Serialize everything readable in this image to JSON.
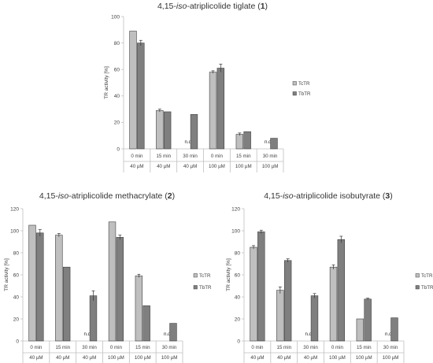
{
  "chart_data": [
    {
      "type": "bar",
      "title": "4,15-iso-atriplicolide tiglate (1)",
      "title_parts": [
        "4,15-",
        "iso",
        "-atriplicolide tiglate (",
        "1",
        ")"
      ],
      "ylabel": "TR activity [%]",
      "ylim": [
        0,
        100
      ],
      "yticks": [
        0,
        20,
        40,
        60,
        80,
        100
      ],
      "categories": [
        {
          "time": "0 min",
          "conc": "40 µM"
        },
        {
          "time": "15 min",
          "conc": "40 µM"
        },
        {
          "time": "30 min",
          "conc": "40 µM"
        },
        {
          "time": "0 min",
          "conc": "100 µM"
        },
        {
          "time": "15 min",
          "conc": "100 µM"
        },
        {
          "time": "30 min",
          "conc": "100 µM"
        }
      ],
      "series": [
        {
          "name": "TcTR",
          "color": "#bfbfbf",
          "values": [
            89,
            29,
            null,
            58,
            11,
            null
          ],
          "errors": [
            0,
            1,
            0,
            1,
            1,
            0
          ],
          "labels": [
            "",
            "",
            "n.d.",
            "",
            "",
            "n.d."
          ]
        },
        {
          "name": "TbTR",
          "color": "#7f7f7f",
          "values": [
            80,
            28,
            26,
            61,
            13,
            8
          ],
          "errors": [
            2,
            0,
            0,
            3,
            0,
            0
          ],
          "labels": [
            "",
            "",
            "",
            "",
            "",
            ""
          ]
        }
      ],
      "legend": "right",
      "grid": false
    },
    {
      "type": "bar",
      "title": "4,15-iso-atriplicolide methacrylate (2)",
      "title_parts": [
        "4,15-",
        "iso",
        "-atriplicolide methacrylate (",
        "2",
        ")"
      ],
      "ylabel": "TR activity [%]",
      "ylim": [
        0,
        120
      ],
      "yticks": [
        0,
        20,
        40,
        60,
        80,
        100,
        120
      ],
      "categories": [
        {
          "time": "0 min",
          "conc": "40 µM"
        },
        {
          "time": "15 min",
          "conc": "40 µM"
        },
        {
          "time": "30 min",
          "conc": "40 µM"
        },
        {
          "time": "0 min",
          "conc": "100 µM"
        },
        {
          "time": "15 min",
          "conc": "100 µM"
        },
        {
          "time": "30 min",
          "conc": "100 µM"
        }
      ],
      "series": [
        {
          "name": "TcTR",
          "color": "#bfbfbf",
          "values": [
            105,
            96,
            null,
            108,
            59,
            null
          ],
          "errors": [
            0,
            1.5,
            0,
            0,
            1.5,
            0
          ],
          "labels": [
            "",
            "",
            "n.d.",
            "",
            "",
            "n.d."
          ]
        },
        {
          "name": "TbTR",
          "color": "#7f7f7f",
          "values": [
            98,
            67,
            41,
            94,
            32,
            16
          ],
          "errors": [
            3,
            0,
            4.5,
            2,
            0,
            0
          ],
          "labels": [
            "",
            "",
            "",
            "",
            "",
            ""
          ]
        }
      ],
      "legend": "right",
      "grid": false
    },
    {
      "type": "bar",
      "title": "4,15-iso-atriplicolide isobutyrate (3)",
      "title_parts": [
        "4,15-",
        "iso",
        "-atriplicolide isobutyrate (",
        "3",
        ")"
      ],
      "ylabel": "TR activity [%]",
      "ylim": [
        0,
        120
      ],
      "yticks": [
        0,
        20,
        40,
        60,
        80,
        100,
        120
      ],
      "categories": [
        {
          "time": "0 min",
          "conc": "40 µM"
        },
        {
          "time": "15 min",
          "conc": "40 µM"
        },
        {
          "time": "30 min",
          "conc": "40 µM"
        },
        {
          "time": "0 min",
          "conc": "100 µM"
        },
        {
          "time": "15 min",
          "conc": "100 µM"
        },
        {
          "time": "30 min",
          "conc": "100 µM"
        }
      ],
      "series": [
        {
          "name": "TcTR",
          "color": "#bfbfbf",
          "values": [
            85,
            46,
            null,
            67,
            20,
            null
          ],
          "errors": [
            1.5,
            3,
            0,
            2,
            0,
            0
          ],
          "labels": [
            "",
            "",
            "n.d.",
            "",
            "",
            "n.d."
          ]
        },
        {
          "name": "TbTR",
          "color": "#7f7f7f",
          "values": [
            99,
            73,
            41,
            92,
            38,
            21
          ],
          "errors": [
            1.5,
            1.5,
            2,
            3,
            0.8,
            0
          ],
          "labels": [
            "",
            "",
            "",
            "",
            "",
            ""
          ]
        }
      ],
      "legend": "right",
      "grid": false
    }
  ]
}
